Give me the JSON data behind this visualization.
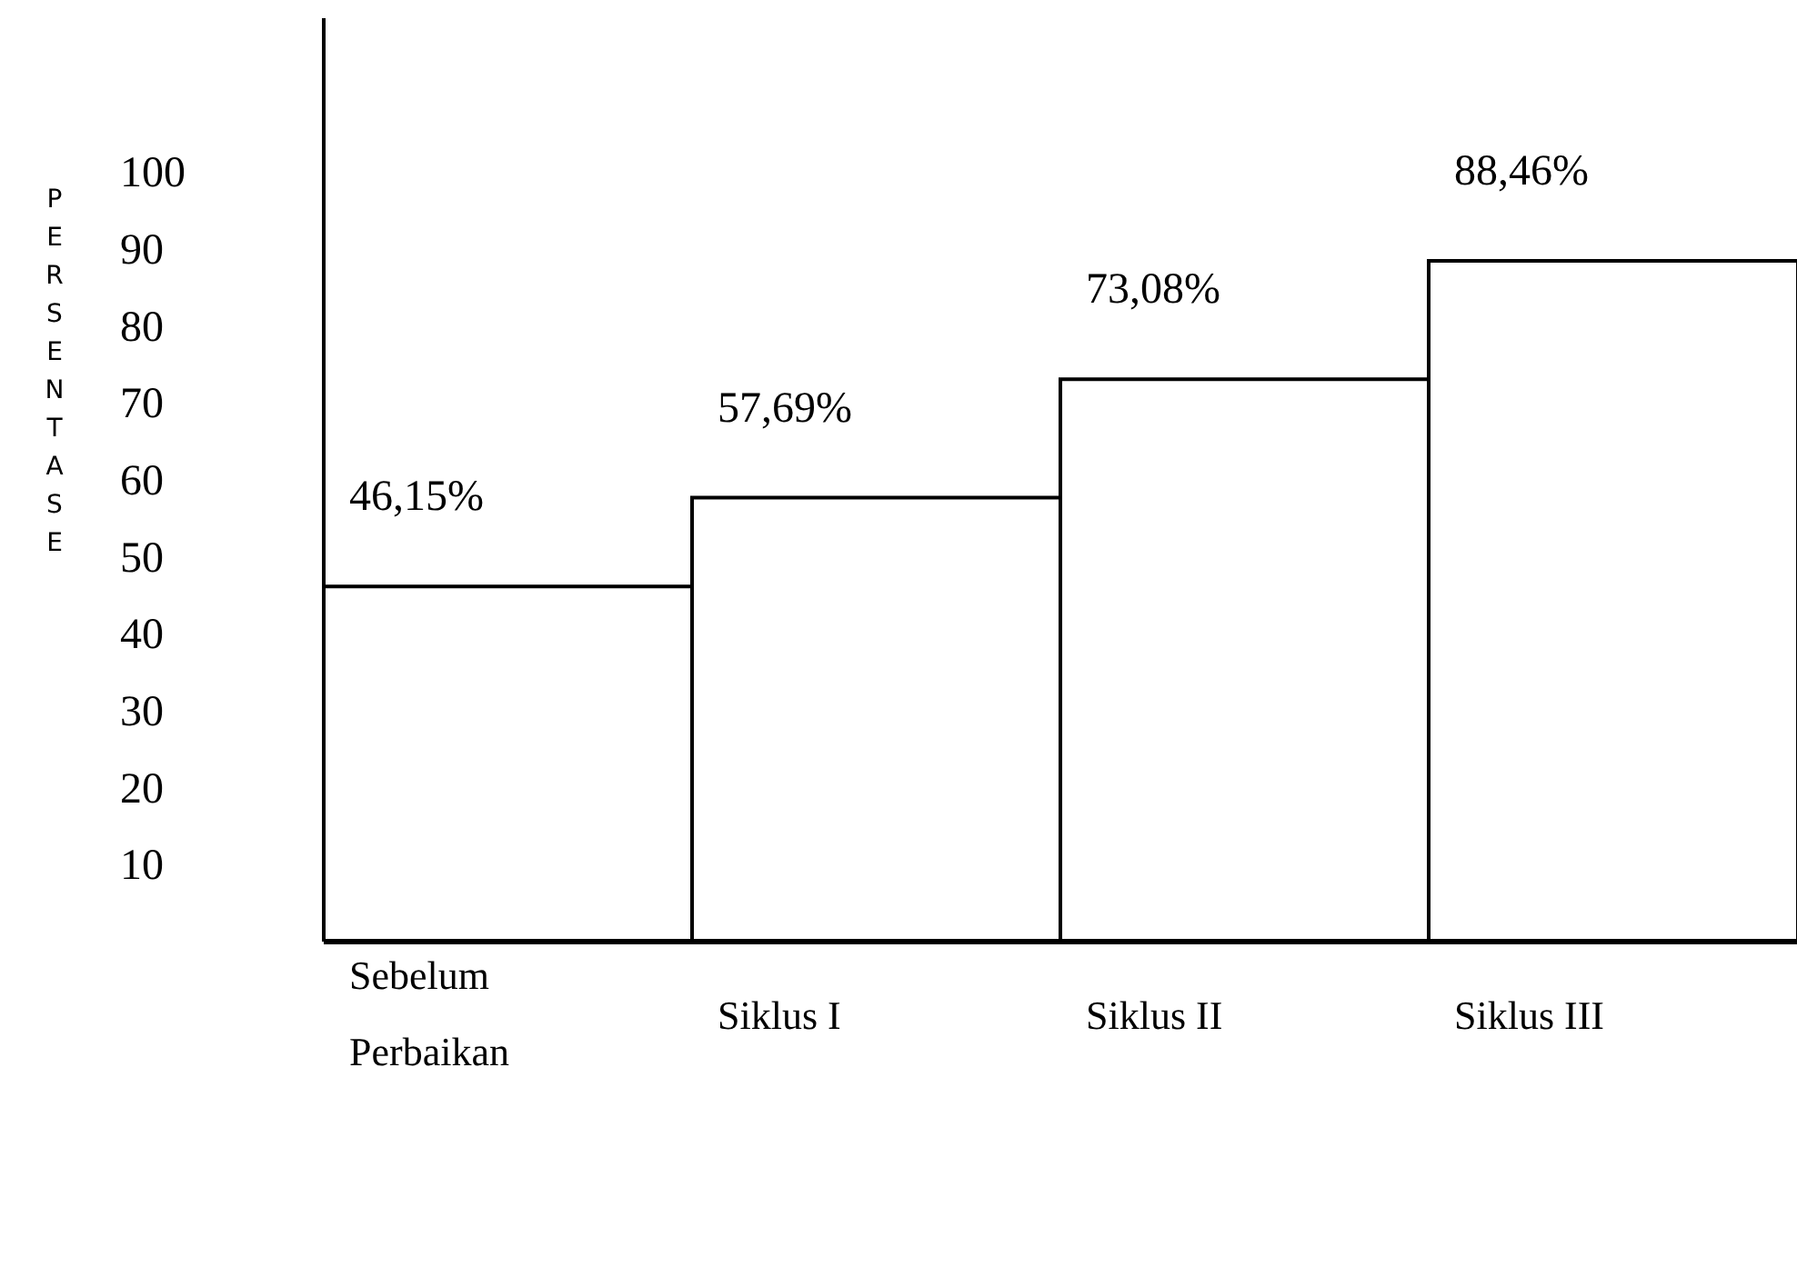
{
  "chart_data": {
    "type": "bar",
    "ylabel": "PERSENTASE",
    "categories": [
      "Sebelum Perbaikan",
      "Siklus I",
      "Siklus II",
      "Siklus III"
    ],
    "values": [
      46.15,
      57.69,
      73.08,
      88.46
    ],
    "value_labels": [
      "46,15%",
      "57,69%",
      "73,08%",
      "88,46%"
    ],
    "color": "#ffffff",
    "ylim": [
      0,
      120
    ],
    "yticks": [
      10,
      20,
      30,
      40,
      50,
      60,
      70,
      80,
      90,
      100
    ],
    "grid": false
  }
}
